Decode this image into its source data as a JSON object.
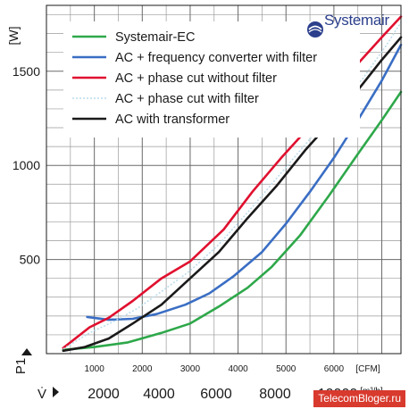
{
  "brand": {
    "name": "Systemair"
  },
  "watermark": "TelecomBloger.ru",
  "chart_data": {
    "type": "line",
    "ylabel": "[W]",
    "yaxis_symbol": "P1",
    "xlabel_primary": "[CFM]",
    "xaxis_secondary_symbol": "V̇",
    "xlabel_secondary": "[m³/h]",
    "xlim": [
      0,
      7400
    ],
    "ylim": [
      0,
      1850
    ],
    "yticks": [
      500,
      1000,
      1500
    ],
    "xticks": [
      1000,
      2000,
      3000,
      4000,
      5000,
      6000
    ],
    "xticks_secondary": [
      2000,
      4000,
      6000,
      8000,
      10000
    ],
    "grid": true,
    "legend": "top-left",
    "series": [
      {
        "name": "Systemair-EC",
        "color": "#2ea84a",
        "x": [
          350,
          1000,
          1700,
          2400,
          3000,
          3600,
          4200,
          4700,
          5300,
          5900,
          6500,
          7000,
          7400
        ],
        "y": [
          20,
          35,
          60,
          110,
          160,
          250,
          350,
          460,
          630,
          840,
          1060,
          1240,
          1390
        ]
      },
      {
        "name": "AC + frequency converter with filter",
        "color": "#3a6ec4",
        "x": [
          850,
          1300,
          1800,
          2300,
          2900,
          3400,
          3900,
          4500,
          5000,
          5500,
          6000,
          6500,
          7000,
          7400
        ],
        "y": [
          195,
          180,
          185,
          210,
          260,
          320,
          410,
          540,
          690,
          860,
          1040,
          1240,
          1450,
          1640
        ]
      },
      {
        "name": "AC + phase cut without filter",
        "color": "#e0102f",
        "x": [
          350,
          900,
          1300,
          1800,
          2400,
          3000,
          3700,
          4300,
          4900,
          5400,
          6000,
          6500,
          7000,
          7400
        ],
        "y": [
          30,
          140,
          190,
          280,
          400,
          490,
          660,
          860,
          1040,
          1180,
          1390,
          1540,
          1680,
          1790
        ]
      },
      {
        "name": "AC + phase cut with filter",
        "color": "#bcdcec",
        "x": [
          350,
          900,
          1400,
          1900,
          2400,
          3000,
          3600,
          4200,
          4800,
          5400,
          6000,
          6600,
          7100,
          7400
        ],
        "y": [
          25,
          110,
          170,
          240,
          330,
          440,
          580,
          750,
          930,
          1110,
          1290,
          1460,
          1640,
          1760
        ]
      },
      {
        "name": "AC with transformer",
        "color": "#1a1a1a",
        "x": [
          350,
          800,
          1300,
          1800,
          2400,
          3000,
          3600,
          4200,
          4800,
          5400,
          6000,
          6500,
          7000,
          7400
        ],
        "y": [
          15,
          35,
          80,
          160,
          260,
          400,
          540,
          720,
          890,
          1080,
          1250,
          1400,
          1560,
          1680
        ]
      }
    ]
  }
}
